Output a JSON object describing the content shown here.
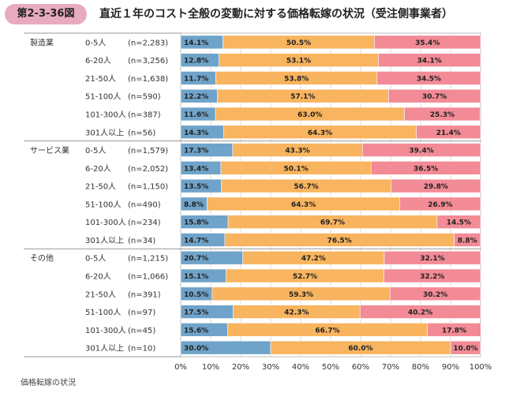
{
  "header": {
    "figure_number": "第2-3-36図",
    "title": "直近１年のコスト全般の変動に対する価格転嫁の状況（受注側事業者）"
  },
  "legend": {
    "label": "価格転嫁の状況"
  },
  "colors": {
    "segment_1": "#6fa3c9",
    "segment_2": "#f8b45e",
    "segment_3": "#f28b95",
    "badge": "#e8aabd"
  },
  "chart_data": {
    "type": "bar",
    "orientation": "horizontal",
    "stacked": true,
    "xlim": [
      0,
      100
    ],
    "x_ticks": [
      "0%",
      "10%",
      "20%",
      "30%",
      "40%",
      "50%",
      "60%",
      "70%",
      "80%",
      "90%",
      "100%"
    ],
    "grid": true,
    "groups": [
      {
        "name": "製造業",
        "rows": [
          {
            "size": "0-5人",
            "n": "(n=2,283)",
            "values": [
              14.1,
              50.5,
              35.4
            ]
          },
          {
            "size": "6-20人",
            "n": "(n=3,256)",
            "values": [
              12.8,
              53.1,
              34.1
            ]
          },
          {
            "size": "21-50人",
            "n": "(n=1,638)",
            "values": [
              11.7,
              53.8,
              34.5
            ]
          },
          {
            "size": "51-100人",
            "n": "(n=590)",
            "values": [
              12.2,
              57.1,
              30.7
            ]
          },
          {
            "size": "101-300人",
            "n": "(n=387)",
            "values": [
              11.6,
              63.0,
              25.3
            ]
          },
          {
            "size": "301人以上",
            "n": "(n=56)",
            "values": [
              14.3,
              64.3,
              21.4
            ]
          }
        ]
      },
      {
        "name": "サービス業",
        "rows": [
          {
            "size": "0-5人",
            "n": "(n=1,579)",
            "values": [
              17.3,
              43.3,
              39.4
            ]
          },
          {
            "size": "6-20人",
            "n": "(n=2,052)",
            "values": [
              13.4,
              50.1,
              36.5
            ]
          },
          {
            "size": "21-50人",
            "n": "(n=1,150)",
            "values": [
              13.5,
              56.7,
              29.8
            ]
          },
          {
            "size": "51-100人",
            "n": "(n=490)",
            "values": [
              8.8,
              64.3,
              26.9
            ]
          },
          {
            "size": "101-300人",
            "n": "(n=234)",
            "values": [
              15.8,
              69.7,
              14.5
            ]
          },
          {
            "size": "301人以上",
            "n": "(n=34)",
            "values": [
              14.7,
              76.5,
              8.8
            ]
          }
        ]
      },
      {
        "name": "その他",
        "rows": [
          {
            "size": "0-5人",
            "n": "(n=1,215)",
            "values": [
              20.7,
              47.2,
              32.1
            ]
          },
          {
            "size": "6-20人",
            "n": "(n=1,066)",
            "values": [
              15.1,
              52.7,
              32.2
            ]
          },
          {
            "size": "21-50人",
            "n": "(n=391)",
            "values": [
              10.5,
              59.3,
              30.2
            ]
          },
          {
            "size": "51-100人",
            "n": "(n=97)",
            "values": [
              17.5,
              42.3,
              40.2
            ]
          },
          {
            "size": "101-300人",
            "n": "(n=45)",
            "values": [
              15.6,
              66.7,
              17.8
            ]
          },
          {
            "size": "301人以上",
            "n": "(n=10)",
            "values": [
              30.0,
              60.0,
              10.0
            ]
          }
        ]
      }
    ]
  }
}
